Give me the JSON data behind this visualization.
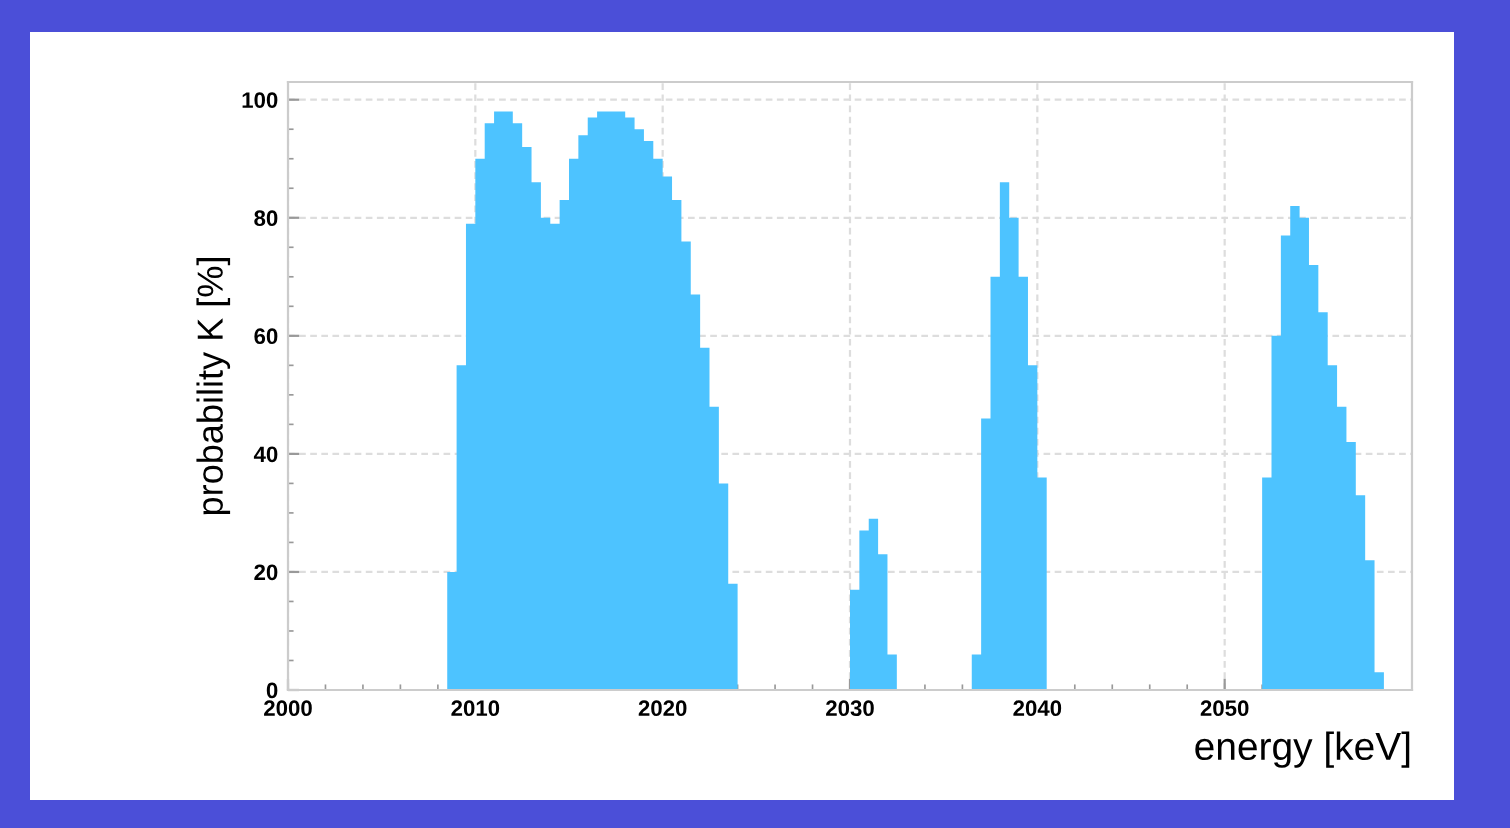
{
  "chart_data": {
    "type": "histogram",
    "xlabel": "energy [keV]",
    "ylabel": "probability K [%]",
    "bins": [
      2008.5,
      2009,
      2009.5,
      2010,
      2010.5,
      2011,
      2011.5,
      2012,
      2012.5,
      2013,
      2013.5,
      2014,
      2014.5,
      2015,
      2015.5,
      2016,
      2016.5,
      2017,
      2017.5,
      2018,
      2018.5,
      2019,
      2019.5,
      2020,
      2020.5,
      2021,
      2021.5,
      2022,
      2022.5,
      2023,
      2023.5,
      2024,
      2024.5,
      2025,
      2025.5,
      2026,
      2026.5,
      2027,
      2027.5,
      2028,
      2028.5,
      2029,
      2029.5,
      2030,
      2030.5,
      2031,
      2031.5,
      2032,
      2032.5,
      2033,
      2033.5,
      2034,
      2034.5,
      2035,
      2035.5,
      2036,
      2036.5,
      2037,
      2037.5,
      2038,
      2038.5,
      2039,
      2039.5,
      2040,
      2040.5,
      2041,
      2041.5,
      2042,
      2042.5,
      2043,
      2043.5,
      2044,
      2044.5,
      2045,
      2045.5,
      2046,
      2046.5,
      2047,
      2047.5,
      2048,
      2048.5,
      2049,
      2049.5,
      2050,
      2050.5,
      2051,
      2051.5,
      2052,
      2052.5,
      2053,
      2053.5,
      2054,
      2054.5,
      2055,
      2055.5,
      2056,
      2056.5,
      2057,
      2057.5,
      2058,
      2058.5
    ],
    "values": [
      20,
      55,
      79,
      90,
      96,
      98,
      98,
      96,
      92,
      86,
      80,
      79,
      83,
      90,
      94,
      97,
      98,
      98,
      98,
      97,
      95,
      93,
      90,
      87,
      83,
      76,
      67,
      58,
      48,
      35,
      18,
      0,
      0,
      0,
      0,
      0,
      0,
      0,
      0,
      0,
      0,
      0,
      0,
      17,
      27,
      29,
      23,
      6,
      0,
      0,
      0,
      0,
      0,
      0,
      0,
      0,
      6,
      46,
      70,
      86,
      80,
      70,
      55,
      36,
      0,
      0,
      0,
      0,
      0,
      0,
      0,
      0,
      0,
      0,
      0,
      0,
      0,
      0,
      0,
      0,
      0,
      0,
      0,
      0,
      0,
      0,
      0,
      36,
      60,
      77,
      82,
      80,
      72,
      64,
      55,
      48,
      42,
      33,
      22,
      3
    ],
    "color": "#4dc3ff",
    "xlim": [
      2000,
      2060
    ],
    "xticks": [
      2000,
      2010,
      2020,
      2030,
      2040,
      2050
    ],
    "ylim": [
      0,
      103
    ],
    "yticks": [
      0,
      20,
      40,
      60,
      80,
      100
    ],
    "grid": true
  }
}
